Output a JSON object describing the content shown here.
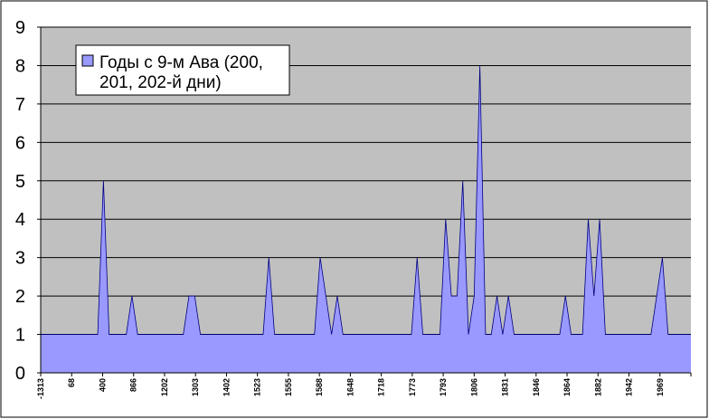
{
  "chart_data": {
    "type": "area",
    "title": "",
    "xlabel": "",
    "ylabel": "",
    "ylim": [
      0,
      9
    ],
    "yticks": [
      "0",
      "1",
      "2",
      "3",
      "4",
      "5",
      "6",
      "7",
      "8",
      "9"
    ],
    "grid": "horizontal",
    "legend_position": "top-left",
    "colors": {
      "plot_background": "#C0C0C0",
      "series_fill": "#9999FF",
      "series_line": "#000080",
      "gridline": "#000000"
    },
    "xtick_labels": [
      "-1313",
      "68",
      "400",
      "866",
      "1202",
      "1303",
      "1402",
      "1523",
      "1555",
      "1588",
      "1648",
      "1718",
      "1773",
      "1793",
      "1806",
      "1831",
      "1846",
      "1864",
      "1882",
      "1942",
      "1969"
    ],
    "series": [
      {
        "name": "Годы с 9-м Ава (200, 201, 202-й дни)",
        "values": [
          1,
          1,
          1,
          1,
          1,
          1,
          1,
          1,
          1,
          1,
          1,
          5,
          1,
          1,
          1,
          1,
          2,
          1,
          1,
          1,
          1,
          1,
          1,
          1,
          1,
          1,
          2,
          2,
          1,
          1,
          1,
          1,
          1,
          1,
          1,
          1,
          1,
          1,
          1,
          1,
          3,
          1,
          1,
          1,
          1,
          1,
          1,
          1,
          1,
          3,
          2,
          1,
          2,
          1,
          1,
          1,
          1,
          1,
          1,
          1,
          1,
          1,
          1,
          1,
          1,
          1,
          3,
          1,
          1,
          1,
          1,
          4,
          2,
          2,
          5,
          1,
          2,
          8,
          1,
          1,
          2,
          1,
          2,
          1,
          1,
          1,
          1,
          1,
          1,
          1,
          1,
          1,
          2,
          1,
          1,
          1,
          4,
          2,
          4,
          1,
          1,
          1,
          1,
          1,
          1,
          1,
          1,
          1,
          2,
          3,
          1,
          1,
          1,
          1
        ]
      }
    ]
  }
}
